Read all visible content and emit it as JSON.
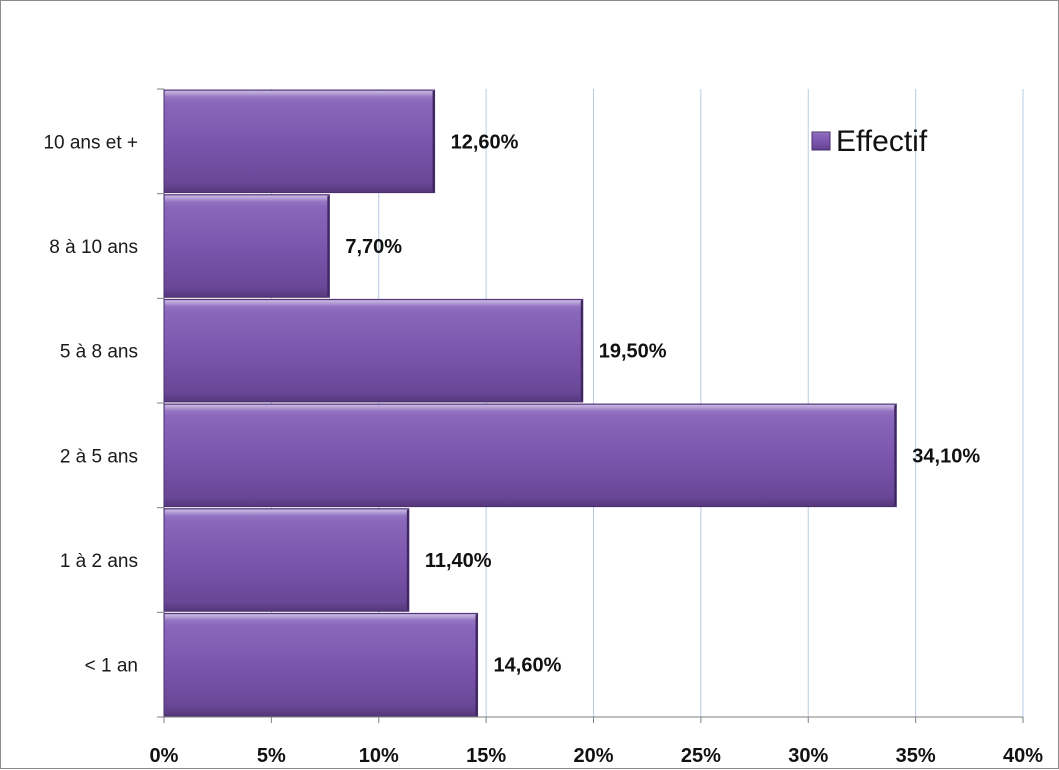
{
  "chart_data": {
    "type": "bar",
    "orientation": "horizontal",
    "categories": [
      "< 1 an",
      "1 à 2 ans",
      "2 à 5 ans",
      "5 à 8 ans",
      "8 à 10 ans",
      "10 ans et +"
    ],
    "series": [
      {
        "name": "Effectif",
        "values": [
          14.6,
          11.4,
          34.1,
          19.5,
          7.7,
          12.6
        ],
        "data_labels": [
          "14,60%",
          "11,40%",
          "34,10%",
          "19,50%",
          "7,70%",
          "12,60%"
        ],
        "color": "#7b55ad"
      }
    ],
    "xlim": [
      0,
      40
    ],
    "x_ticks": [
      0,
      5,
      10,
      15,
      20,
      25,
      30,
      35,
      40
    ],
    "x_tick_labels": [
      "0%",
      "5%",
      "10%",
      "15%",
      "20%",
      "25%",
      "30%",
      "35%",
      "40%"
    ],
    "gridlines": "vertical",
    "gridline_color": "#b8cce4",
    "legend": {
      "position": "top-right",
      "entries": [
        "Effectif"
      ]
    },
    "title": "",
    "xlabel": "",
    "ylabel": ""
  }
}
